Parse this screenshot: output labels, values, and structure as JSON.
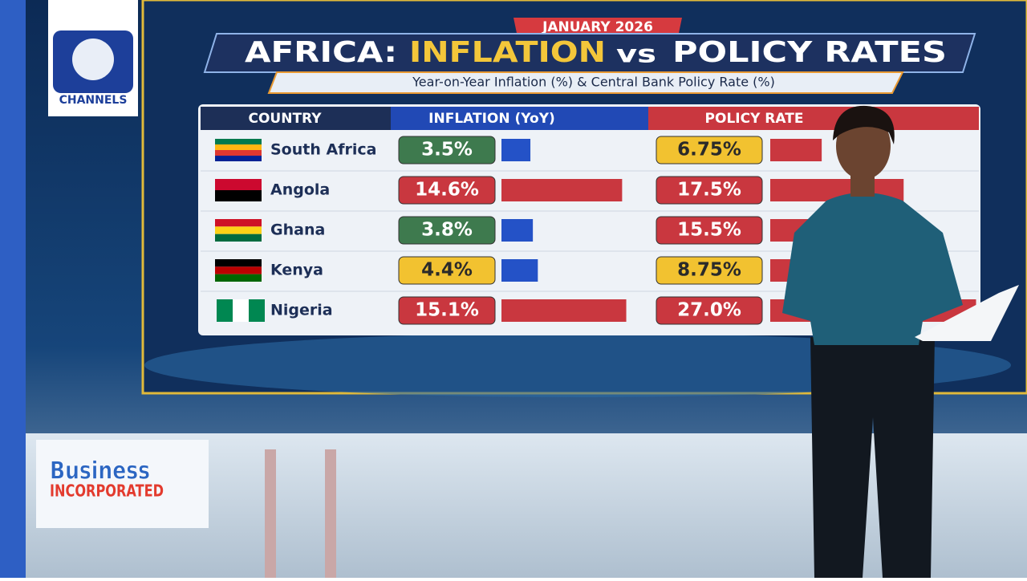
{
  "logo": {
    "text": "CHANNELS"
  },
  "header": {
    "date": "JANUARY 2026",
    "title_parts": [
      "AFRICA:",
      "INFLATION",
      "vs",
      "POLICY RATES"
    ],
    "subtitle": "Year-on-Year Inflation (%) & Central Bank Policy Rate (%)"
  },
  "table": {
    "columns": [
      "COUNTRY",
      "INFLATION (YoY)",
      "POLICY RATE"
    ],
    "rows": [
      {
        "country": "South Africa",
        "inflation": 3.5,
        "inflation_label": "3.5%",
        "inflation_color": "#3e7a4e",
        "policy_rate": 6.75,
        "policy_label": "6.75%",
        "policy_color": "#f2c230"
      },
      {
        "country": "Angola",
        "inflation": 14.6,
        "inflation_label": "14.6%",
        "inflation_color": "#c9373f",
        "policy_rate": 17.5,
        "policy_label": "17.5%",
        "policy_color": "#c9373f"
      },
      {
        "country": "Ghana",
        "inflation": 3.8,
        "inflation_label": "3.8%",
        "inflation_color": "#3e7a4e",
        "policy_rate": 15.5,
        "policy_label": "15.5%",
        "policy_color": "#c9373f"
      },
      {
        "country": "Kenya",
        "inflation": 4.4,
        "inflation_label": "4.4%",
        "inflation_color": "#f2c230",
        "policy_rate": 8.75,
        "policy_label": "8.75%",
        "policy_color": "#f2c230"
      },
      {
        "country": "Nigeria",
        "inflation": 15.1,
        "inflation_label": "15.1%",
        "inflation_color": "#c9373f",
        "policy_rate": 27.0,
        "policy_label": "27.0%",
        "policy_color": "#c9373f"
      }
    ]
  },
  "show_logo": {
    "line1": "Business",
    "line2": "INCORPORATED"
  }
}
